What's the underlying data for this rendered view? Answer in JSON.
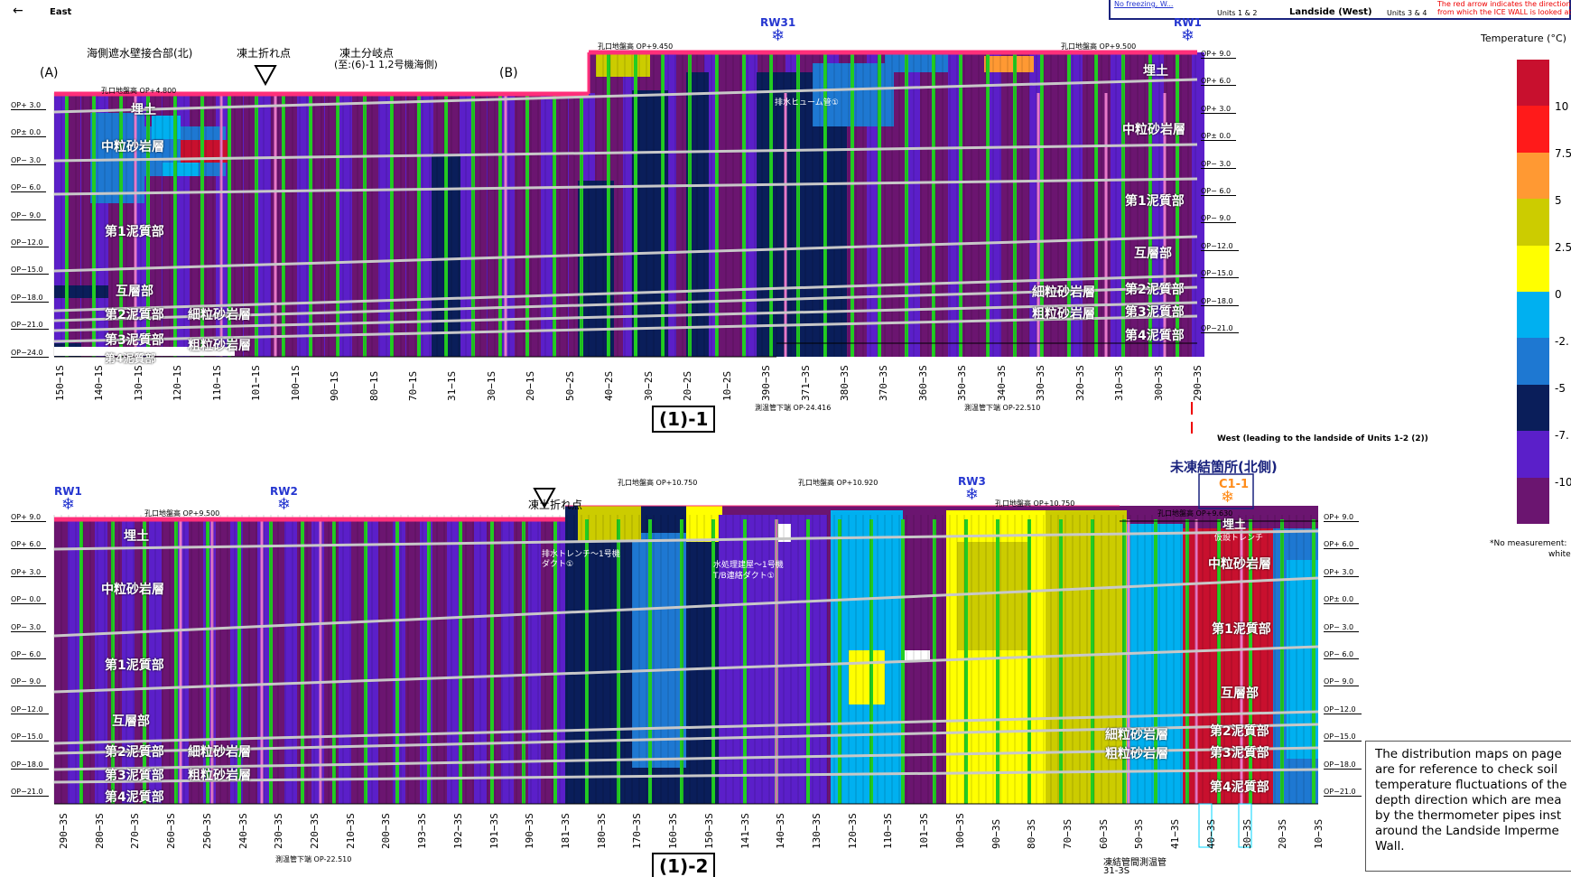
{
  "header": {
    "back_arrow": "←",
    "east": "East"
  },
  "keybox": {
    "nofreeze": "No freezing, W...",
    "units12": "Units 1 & 2",
    "landside": "Landside (West)",
    "units34": "Units 3 & 4",
    "red_note1": "The red arrow indicates the direction",
    "red_note2": "from which the ICE WALL is looked at."
  },
  "colors": {
    "c10": "#c8102e",
    "c75": "#ff1a1a",
    "c5": "#ff9933",
    "c25": "#cccc00",
    "c0y": "#ffff00",
    "c0": "#00b0f0",
    "cm25": "#1e78d2",
    "cm5": "#0a1e5a",
    "cm75": "#5b1fc9",
    "cm10": "#6b1570",
    "green": "#22cc22",
    "pink": "#e879c9",
    "surface": "#ff2f7a",
    "gray": "#c8c8c8",
    "rw": "#2536d0",
    "cyan": "#00d5ff"
  },
  "legend": {
    "title": "Temperature (°C)",
    "ticks": [
      "10",
      "7.5",
      "5",
      "2.5",
      "0",
      "-2.",
      "-5",
      "-7.",
      "-10"
    ],
    "no_measurement": "*No measurement:",
    "white": "white"
  },
  "panel1": {
    "section": "(1)-1",
    "labels": {
      "a": "(A)",
      "b": "(B)",
      "seawall": "海側遮水壁接合部(北)",
      "bend": "凍土折れ点",
      "branch": "凍土分岐点",
      "branch_sub": "(至:(6)-1 1,2号機海側)",
      "ground1": "孔口地盤高 OP+4.800",
      "ground2": "孔口地盤高 OP+9.450",
      "ground3": "孔口地盤高 OP+9.500",
      "pipe": "排水ヒューム管①",
      "bottom1": "測温管下端 OP-24.416",
      "bottom2": "測温管下端 OP-22.510"
    },
    "depths": [
      "OP+ 3.0",
      "OP± 0.0",
      "OP− 3.0",
      "OP− 6.0",
      "OP− 9.0",
      "OP−12.0",
      "OP−15.0",
      "OP−18.0",
      "OP−21.0",
      "OP−24.0"
    ],
    "depths_right": [
      "OP+ 9.0",
      "OP+ 6.0",
      "OP+ 3.0",
      "OP± 0.0",
      "OP− 3.0",
      "OP− 6.0",
      "OP− 9.0",
      "OP−12.0",
      "OP−15.0",
      "OP−18.0",
      "OP−21.0"
    ],
    "layers": {
      "umetsuchi": "埋土",
      "chuuryuu": "中粒砂岩層",
      "deishitsu1": "第1泥質部",
      "gosou": "互層部",
      "deishitsu2": "第2泥質部",
      "saisa": "細粒砂岩層",
      "deishitsu3": "第3泥質部",
      "sosa": "粗粒砂岩層",
      "deishitsu4": "第4泥質部"
    },
    "rw31": "RW31",
    "rw1": "RW1",
    "holes": [
      "150−1S",
      "140−1S",
      "130−1S",
      "120−1S",
      "110−1S",
      "101−1S",
      "100−1S",
      "90−1S",
      "80−1S",
      "70−1S",
      "31−1S",
      "30−1S",
      "20−1S",
      "50−2S",
      "40−2S",
      "30−2S",
      "20−2S",
      "10−2S",
      "390−3S",
      "371−3S",
      "380−3S",
      "370−3S",
      "360−3S",
      "350−3S",
      "340−3S",
      "330−3S",
      "320−3S",
      "310−3S",
      "300−3S",
      "290−3S"
    ]
  },
  "west_note": "West  (leading to the landside of Units 1-2 (2))",
  "panel2": {
    "section": "(1)-2",
    "labels": {
      "bend": "凍土折れ点",
      "unfrozen": "未凍結箇所(北側)",
      "ground1": "孔口地盤高 OP+9.500",
      "ground2": "孔口地盤高 OP+10.750",
      "ground3": "孔口地盤高 OP+10.920",
      "ground4": "孔口地盤高 OP+10.750",
      "ground5": "孔口地盤高 OP+9.630",
      "duct1": "排水トレンチ～1号機",
      "duct1b": "ダクト①",
      "duct2": "水処理建屋～1号機",
      "duct2b": "T/B連絡ダクト①",
      "trench": "仮設トレンチ",
      "bottom": "測温管下端 OP-22.510",
      "frozen_pipe": "凍結管間測温管",
      "frozen_pipe_id": "31-3S",
      "c1": "C1-1"
    },
    "depths": [
      "OP+ 9.0",
      "OP+ 6.0",
      "OP+ 3.0",
      "OP− 0.0",
      "OP− 3.0",
      "OP− 6.0",
      "OP− 9.0",
      "OP−12.0",
      "OP−15.0",
      "OP−18.0",
      "OP−21.0"
    ],
    "depths_right": [
      "OP+ 9.0",
      "OP+ 6.0",
      "OP+ 3.0",
      "OP± 0.0",
      "OP− 3.0",
      "OP− 6.0",
      "OP− 9.0",
      "OP−12.0",
      "OP−15.0",
      "OP−18.0",
      "OP−21.0"
    ],
    "rw1": "RW1",
    "rw2": "RW2",
    "rw3": "RW3",
    "holes": [
      "290−3S",
      "280−3S",
      "270−3S",
      "260−3S",
      "250−3S",
      "240−3S",
      "230−3S",
      "220−3S",
      "210−3S",
      "200−3S",
      "193−3S",
      "192−3S",
      "191−3S",
      "190−3S",
      "181−3S",
      "180−3S",
      "170−3S",
      "160−3S",
      "150−3S",
      "141−3S",
      "140−3S",
      "130−3S",
      "120−3S",
      "110−3S",
      "101−3S",
      "100−3S",
      "90−3S",
      "80−3S",
      "70−3S",
      "60−3S",
      "50−3S",
      "41−3S",
      "40−3S",
      "30−3S",
      "20−3S",
      "10−3S"
    ]
  },
  "info": "The distribution maps on page are for reference to check soil temperature fluctuations of the depth direction which are mea by the thermometer pipes inst around the Landside Imperme Wall."
}
